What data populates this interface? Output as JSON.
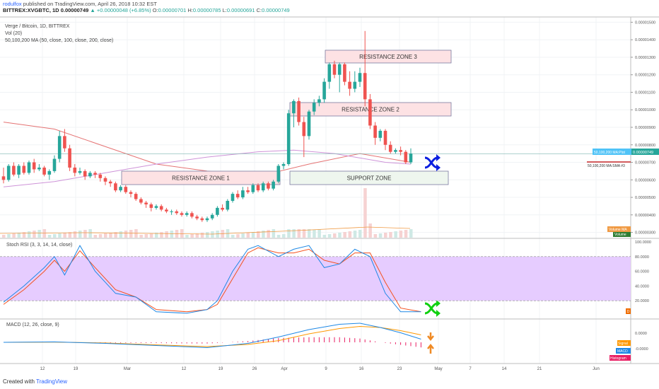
{
  "header": {
    "author": "rodulfox",
    "published_text": " published on TradingView.com, April 26, 2018 10:32 EST",
    "symbol": "BITTREX:XVGBTC, 1D",
    "last": "0.00000749",
    "change": "▲ +0.00000048 (+6.85%)",
    "o_label": "O:",
    "o": "0.00000701",
    "h_label": "H:",
    "h": "0.00000785",
    "l_label": "L:",
    "l": "0.00000691",
    "c_label": "C:",
    "c": "0.00000749"
  },
  "legend": {
    "series_title": "Verge / Bitcoin, 1D, BITTREX",
    "vol": "Vol (20)",
    "ma": "50,100,200 MA (50, close, 100, close, 200, close)",
    "stoch": "Stoch RSI (3, 3, 14, 14, close)",
    "macd": "MACD (12, 26, close, 9)"
  },
  "annotations": {
    "res1": "RESISTANCE ZONE 1",
    "res2": "RESISTANCE ZONE 2",
    "res3": "RESISTANCE ZONE 3",
    "support": "SUPPORT ZONE"
  },
  "right_labels": {
    "price_tag": "50,100,200 MA:Plot",
    "price_val": "0.00000749",
    "ma_tag": "50,100,200 MA:SMA #3",
    "vol_tag": "Volume MA",
    "vol_tag2": "Volume",
    "rsi_tag": "D",
    "macd_signal": "Signal",
    "macd_macd": "MACD",
    "macd_hist": "Histogram"
  },
  "footer": {
    "created_with": "Created with",
    "brand": "TradingView"
  },
  "colors": {
    "up": "#26a69a",
    "down": "#ef5350",
    "ma_slow": "#e57373",
    "ma_fast": "#ce93d8",
    "zone_fill": "#fde2e4",
    "zone_border": "#7a7aa0",
    "support_fill": "#eef6ee",
    "rsi_band": "#e6ccff",
    "k_line": "#1e88e5",
    "d_line": "#f4511e",
    "macd_line": "#1e88e5",
    "signal_line": "#ff9800",
    "hist": "#e91e63",
    "shuffle_blue": "#0b1fe0",
    "shuffle_green": "#10d010",
    "arrow_orange": "#ef8a25"
  },
  "chart_data": {
    "type": "candlestick",
    "title": "Verge / Bitcoin, 1D, BITTREX",
    "x_ticks": [
      "12",
      "19",
      "Mar",
      "12",
      "19",
      "26",
      "Apr",
      "9",
      "16",
      "23",
      "May",
      "7",
      "14",
      "21",
      "Jun"
    ],
    "price_ticks": [
      "0.00001500",
      "0.00001400",
      "0.00001300",
      "0.00001200",
      "0.00001100",
      "0.00001000",
      "0.00000900",
      "0.00000800",
      "0.00000700",
      "0.00000600",
      "0.00000500",
      "0.00000400",
      "0.00000300"
    ],
    "ylim": [
      2.7e-06,
      1.53e-05
    ],
    "candles": [
      [
        6.2,
        6.0,
        6.7,
        5.8
      ],
      [
        6.0,
        6.8,
        6.9,
        5.9
      ],
      [
        6.8,
        6.3,
        7.0,
        6.2
      ],
      [
        6.3,
        6.8,
        6.9,
        6.1
      ],
      [
        6.8,
        6.4,
        7.0,
        6.3
      ],
      [
        6.4,
        7.0,
        7.1,
        6.3
      ],
      [
        7.0,
        6.6,
        7.2,
        6.4
      ],
      [
        6.6,
        6.7,
        6.9,
        6.5
      ],
      [
        6.7,
        6.3,
        6.8,
        6.2
      ],
      [
        6.3,
        6.5,
        6.6,
        6.0
      ],
      [
        6.5,
        7.2,
        7.4,
        6.4
      ],
      [
        7.2,
        8.5,
        8.8,
        7.0
      ],
      [
        8.5,
        7.8,
        8.9,
        7.6
      ],
      [
        7.8,
        6.7,
        8.0,
        6.5
      ],
      [
        6.7,
        6.4,
        6.9,
        6.2
      ],
      [
        6.4,
        6.5,
        6.7,
        6.3
      ],
      [
        6.5,
        6.2,
        6.6,
        6.0
      ],
      [
        6.2,
        6.4,
        6.5,
        6.1
      ],
      [
        6.4,
        6.3,
        6.5,
        6.1
      ],
      [
        6.3,
        6.1,
        6.4,
        5.9
      ],
      [
        6.1,
        5.9,
        6.2,
        5.7
      ],
      [
        5.9,
        5.8,
        6.0,
        5.6
      ],
      [
        5.8,
        5.4,
        5.9,
        5.3
      ],
      [
        5.4,
        5.6,
        5.7,
        5.3
      ],
      [
        5.6,
        5.3,
        5.7,
        5.2
      ],
      [
        5.3,
        5.2,
        5.4,
        5.0
      ],
      [
        5.2,
        4.9,
        5.3,
        4.8
      ],
      [
        4.9,
        4.7,
        5.0,
        4.6
      ],
      [
        4.7,
        4.6,
        4.8,
        4.4
      ],
      [
        4.6,
        4.4,
        4.7,
        4.2
      ],
      [
        4.4,
        4.5,
        4.6,
        4.3
      ],
      [
        4.5,
        4.3,
        4.6,
        4.2
      ],
      [
        4.3,
        4.2,
        4.4,
        4.1
      ],
      [
        4.2,
        4.2,
        4.3,
        4.0
      ],
      [
        4.2,
        4.1,
        4.3,
        4.0
      ],
      [
        4.1,
        4.0,
        4.2,
        3.9
      ],
      [
        4.0,
        4.1,
        4.2,
        3.9
      ],
      [
        4.1,
        3.9,
        4.2,
        3.8
      ],
      [
        3.9,
        3.8,
        4.0,
        3.7
      ],
      [
        3.8,
        3.7,
        3.9,
        3.6
      ],
      [
        3.7,
        3.8,
        3.9,
        3.6
      ],
      [
        3.8,
        4.0,
        4.1,
        3.7
      ],
      [
        4.0,
        4.4,
        4.5,
        3.9
      ],
      [
        4.4,
        4.3,
        4.6,
        4.2
      ],
      [
        4.3,
        4.8,
        4.9,
        4.2
      ],
      [
        4.8,
        5.2,
        5.3,
        4.7
      ],
      [
        5.2,
        5.0,
        5.4,
        4.9
      ],
      [
        5.0,
        5.4,
        5.6,
        4.9
      ],
      [
        5.4,
        5.3,
        5.6,
        5.2
      ],
      [
        5.3,
        5.7,
        5.8,
        5.2
      ],
      [
        5.7,
        5.4,
        5.8,
        5.3
      ],
      [
        5.4,
        5.8,
        5.9,
        5.3
      ],
      [
        5.8,
        5.5,
        5.9,
        5.4
      ],
      [
        5.5,
        5.9,
        6.0,
        5.4
      ],
      [
        5.9,
        6.8,
        6.9,
        5.8
      ],
      [
        6.8,
        6.9,
        7.0,
        6.6
      ],
      [
        6.9,
        9.8,
        10.0,
        6.8
      ],
      [
        9.8,
        10.5,
        10.6,
        9.0
      ],
      [
        10.5,
        9.3,
        10.7,
        9.1
      ],
      [
        9.3,
        8.5,
        9.6,
        7.3
      ],
      [
        8.5,
        9.9,
        10.0,
        8.3
      ],
      [
        9.9,
        10.4,
        10.6,
        9.7
      ],
      [
        10.4,
        10.6,
        10.8,
        10.2
      ],
      [
        10.6,
        11.6,
        11.8,
        10.4
      ],
      [
        11.6,
        12.6,
        12.7,
        11.2
      ],
      [
        12.6,
        12.0,
        12.8,
        11.8
      ],
      [
        12.0,
        12.6,
        12.7,
        11.0
      ],
      [
        12.6,
        11.6,
        12.7,
        11.4
      ],
      [
        11.6,
        11.2,
        12.2,
        10.8
      ],
      [
        11.2,
        11.6,
        12.2,
        11.0
      ],
      [
        11.6,
        12.1,
        12.4,
        11.3
      ],
      [
        12.1,
        10.6,
        14.5,
        10.2
      ],
      [
        10.6,
        9.1,
        10.9,
        8.9
      ],
      [
        9.1,
        8.4,
        9.3,
        8.0
      ],
      [
        8.4,
        8.8,
        8.9,
        8.2
      ],
      [
        8.8,
        8.0,
        8.9,
        7.7
      ],
      [
        8.0,
        7.6,
        8.2,
        7.5
      ],
      [
        7.6,
        7.7,
        7.8,
        7.5
      ],
      [
        7.7,
        7.6,
        7.9,
        7.4
      ],
      [
        7.6,
        7.0,
        7.7,
        6.9
      ],
      [
        7.0,
        7.5,
        7.8,
        6.9
      ]
    ],
    "ma_slow": [
      [
        0,
        9.3
      ],
      [
        10,
        8.9
      ],
      [
        20,
        7.9
      ],
      [
        30,
        6.9
      ],
      [
        40,
        6.5
      ],
      [
        50,
        6.2
      ],
      [
        60,
        6.9
      ],
      [
        70,
        7.5
      ],
      [
        80,
        7.0
      ]
    ],
    "ma_fast": [
      [
        0,
        5.6
      ],
      [
        10,
        5.9
      ],
      [
        20,
        6.4
      ],
      [
        30,
        6.9
      ],
      [
        40,
        7.3
      ],
      [
        50,
        7.6
      ],
      [
        57,
        7.7
      ],
      [
        65,
        7.5
      ],
      [
        75,
        7.0
      ],
      [
        80,
        6.9
      ]
    ],
    "stoch_ticks": [
      "100.0000",
      "80.0000",
      "60.0000",
      "40.0000",
      "20.0000"
    ],
    "stoch_k": [
      [
        0,
        18
      ],
      [
        4,
        40
      ],
      [
        8,
        65
      ],
      [
        10,
        80
      ],
      [
        12,
        55
      ],
      [
        15,
        95
      ],
      [
        18,
        60
      ],
      [
        22,
        30
      ],
      [
        26,
        25
      ],
      [
        30,
        5
      ],
      [
        36,
        3
      ],
      [
        40,
        8
      ],
      [
        42,
        20
      ],
      [
        45,
        60
      ],
      [
        48,
        90
      ],
      [
        50,
        95
      ],
      [
        54,
        80
      ],
      [
        57,
        90
      ],
      [
        60,
        95
      ],
      [
        63,
        65
      ],
      [
        66,
        70
      ],
      [
        69,
        90
      ],
      [
        72,
        80
      ],
      [
        75,
        30
      ],
      [
        78,
        5
      ],
      [
        82,
        5
      ]
    ],
    "stoch_d": [
      [
        0,
        15
      ],
      [
        4,
        35
      ],
      [
        8,
        60
      ],
      [
        10,
        75
      ],
      [
        12,
        60
      ],
      [
        15,
        88
      ],
      [
        18,
        65
      ],
      [
        22,
        35
      ],
      [
        26,
        25
      ],
      [
        30,
        8
      ],
      [
        36,
        5
      ],
      [
        40,
        8
      ],
      [
        42,
        15
      ],
      [
        45,
        50
      ],
      [
        48,
        85
      ],
      [
        50,
        92
      ],
      [
        54,
        85
      ],
      [
        57,
        85
      ],
      [
        60,
        90
      ],
      [
        63,
        75
      ],
      [
        66,
        70
      ],
      [
        69,
        85
      ],
      [
        72,
        85
      ],
      [
        75,
        45
      ],
      [
        78,
        10
      ],
      [
        82,
        5
      ]
    ],
    "macd_ticks": [
      "0.0000",
      "-0.0000"
    ],
    "macd": [
      [
        0,
        0.0
      ],
      [
        10,
        0.02
      ],
      [
        20,
        -0.05
      ],
      [
        30,
        -0.15
      ],
      [
        40,
        -0.25
      ],
      [
        48,
        -0.05
      ],
      [
        54,
        0.25
      ],
      [
        60,
        0.6
      ],
      [
        66,
        0.85
      ],
      [
        70,
        0.9
      ],
      [
        74,
        0.7
      ],
      [
        78,
        0.45
      ],
      [
        82,
        0.15
      ]
    ],
    "signal": [
      [
        0,
        0.0
      ],
      [
        10,
        0.01
      ],
      [
        20,
        -0.03
      ],
      [
        30,
        -0.12
      ],
      [
        40,
        -0.2
      ],
      [
        48,
        -0.1
      ],
      [
        54,
        0.08
      ],
      [
        60,
        0.4
      ],
      [
        66,
        0.65
      ],
      [
        70,
        0.75
      ],
      [
        74,
        0.7
      ],
      [
        78,
        0.55
      ],
      [
        82,
        0.35
      ]
    ]
  }
}
